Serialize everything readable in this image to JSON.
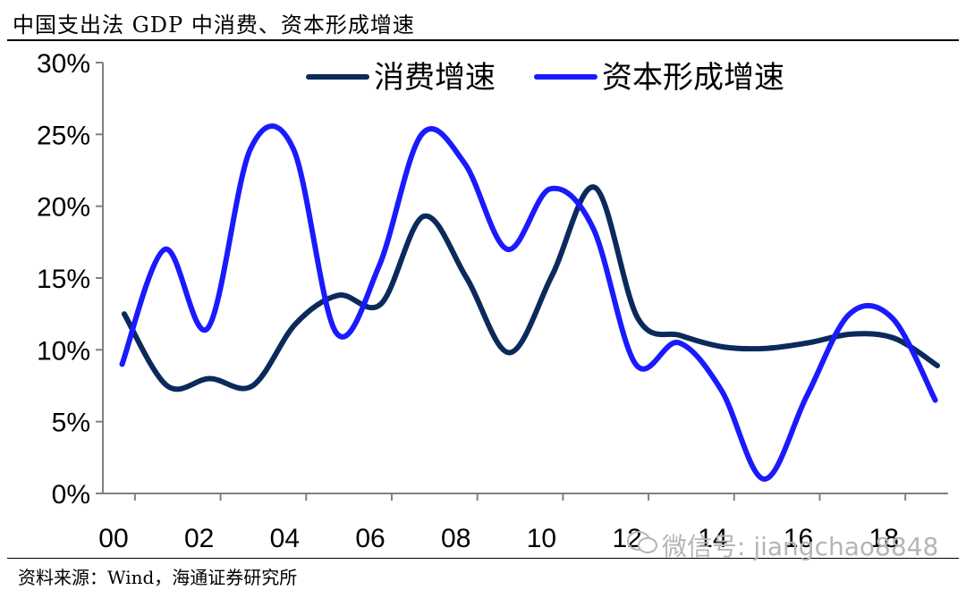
{
  "title": "中国支出法 GDP 中消费、资本形成增速",
  "source": "资料来源：Wind，海通证券研究所",
  "watermark": "微信号: jiangchao8848",
  "colors": {
    "consumption": "#0b2a5c",
    "capital": "#1a1aff",
    "axis": "#808080"
  },
  "chart_data": {
    "type": "line",
    "x": [
      2000,
      2001,
      2002,
      2003,
      2004,
      2005,
      2006,
      2007,
      2008,
      2009,
      2010,
      2011,
      2012,
      2013,
      2014,
      2015,
      2016,
      2017,
      2018,
      2019
    ],
    "series": [
      {
        "name": "消费增速",
        "values": [
          12.5,
          7.5,
          8.0,
          7.5,
          11.8,
          13.8,
          13.2,
          19.3,
          15.0,
          9.8,
          15.2,
          21.3,
          12.2,
          11.0,
          10.2,
          10.1,
          10.5,
          11.1,
          10.8,
          8.9
        ]
      },
      {
        "name": "资本形成增速",
        "values": [
          9.0,
          17.0,
          11.5,
          24.0,
          24.0,
          11.2,
          15.8,
          25.0,
          23.0,
          17.0,
          21.2,
          18.5,
          9.0,
          10.5,
          7.2,
          1.0,
          6.8,
          12.5,
          12.2,
          6.5
        ]
      }
    ],
    "xticks": [
      "00",
      "02",
      "04",
      "06",
      "08",
      "10",
      "12",
      "14",
      "16",
      "18"
    ],
    "yticks": [
      "0%",
      "5%",
      "10%",
      "15%",
      "20%",
      "25%",
      "30%"
    ],
    "ylim": [
      0,
      30
    ],
    "xlim": [
      1999.75,
      2019.5
    ],
    "legend_position": "top",
    "grid": false
  }
}
